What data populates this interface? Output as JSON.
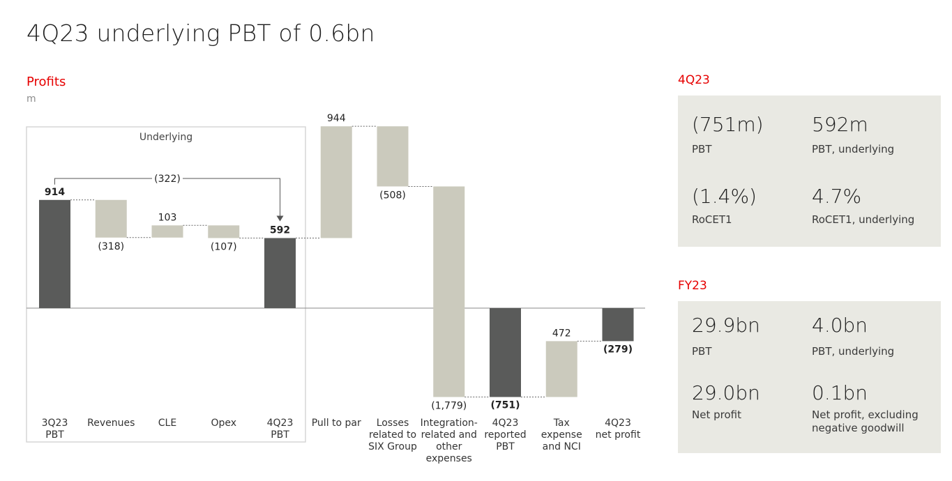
{
  "header": {
    "title": "4Q23 underlying PBT of 0.6bn"
  },
  "chart_data": {
    "type": "waterfall",
    "title": "Profits",
    "unit": "m",
    "box_label": "Underlying",
    "bridge_label": "(322)",
    "bars": [
      {
        "category": "3Q23 PBT",
        "kind": "total",
        "start": 0,
        "end": 914,
        "label": "914",
        "bold": true
      },
      {
        "category": "Revenues",
        "kind": "delta",
        "start": 914,
        "end": 596,
        "label": "(318)",
        "bold": false
      },
      {
        "category": "CLE",
        "kind": "delta",
        "start": 596,
        "end": 699,
        "label": "103",
        "bold": false
      },
      {
        "category": "Opex",
        "kind": "delta",
        "start": 699,
        "end": 592,
        "label": "(107)",
        "bold": false
      },
      {
        "category": "4Q23 PBT",
        "kind": "total",
        "start": 0,
        "end": 592,
        "label": "592",
        "bold": true
      },
      {
        "category": "Pull to par",
        "kind": "delta",
        "start": 592,
        "end": 1536,
        "label": "944",
        "bold": false
      },
      {
        "category": "Losses related to SIX Group",
        "kind": "delta",
        "start": 1536,
        "end": 1028,
        "label": "(508)",
        "bold": false
      },
      {
        "category": "Integration-related and other expenses",
        "kind": "delta",
        "start": 1028,
        "end": -751,
        "label": "(1,779)",
        "bold": false
      },
      {
        "category": "4Q23 reported PBT",
        "kind": "total",
        "start": 0,
        "end": -751,
        "label": "(751)",
        "bold": true
      },
      {
        "category": "Tax expense and NCI",
        "kind": "delta",
        "start": -751,
        "end": -279,
        "label": "472",
        "bold": false
      },
      {
        "category": "4Q23 net profit",
        "kind": "total",
        "start": 0,
        "end": -279,
        "label": "(279)",
        "bold": true
      }
    ],
    "category_lines": [
      [
        "3Q23",
        "PBT"
      ],
      [
        "Revenues"
      ],
      [
        "CLE"
      ],
      [
        "Opex"
      ],
      [
        "4Q23",
        "PBT"
      ],
      [
        "Pull to par"
      ],
      [
        "Losses",
        "related to",
        "SIX Group"
      ],
      [
        "Integration-",
        "related and",
        "other",
        "expenses"
      ],
      [
        "4Q23",
        "reported",
        "PBT"
      ],
      [
        "Tax",
        "expense",
        "and NCI"
      ],
      [
        "4Q23",
        "net profit"
      ]
    ],
    "colors": {
      "total": "#5a5b5a",
      "delta": "#cbcabd",
      "accent": "#e60000"
    }
  },
  "panel_4q23": {
    "heading": "4Q23",
    "metrics": [
      {
        "value": "(751m)",
        "label": "PBT"
      },
      {
        "value": "592m",
        "label": "PBT, underlying"
      },
      {
        "value": "(1.4%)",
        "label": "RoCET1"
      },
      {
        "value": "4.7%",
        "label": "RoCET1, underlying"
      }
    ]
  },
  "panel_fy23": {
    "heading": "FY23",
    "metrics": [
      {
        "value": "29.9bn",
        "label": "PBT"
      },
      {
        "value": "4.0bn",
        "label": "PBT, underlying"
      },
      {
        "value": "29.0bn",
        "label": "Net profit"
      },
      {
        "value": "0.1bn",
        "label": "Net profit, excluding negative goodwill"
      }
    ]
  }
}
